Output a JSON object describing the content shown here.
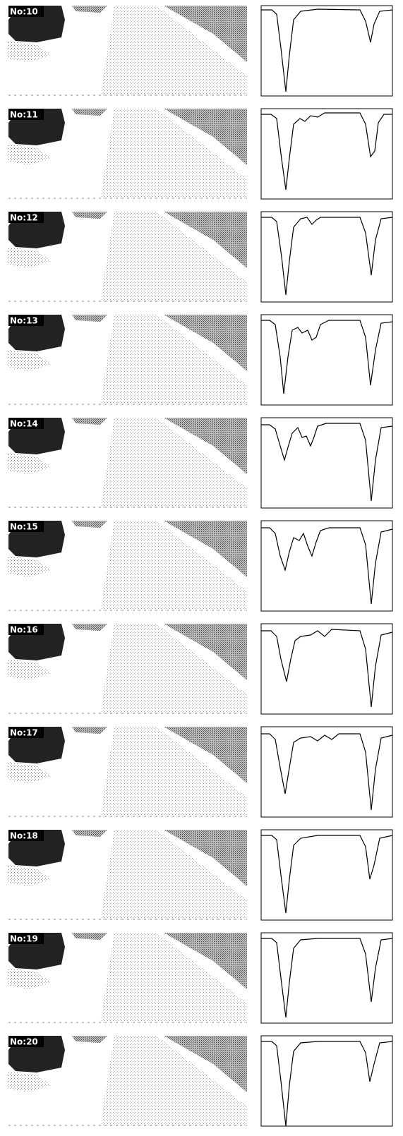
{
  "frames": [
    {
      "label": "No:10"
    },
    {
      "label": "No:11"
    },
    {
      "label": "No:12"
    },
    {
      "label": "No:13"
    },
    {
      "label": "No:14"
    },
    {
      "label": "No:15"
    },
    {
      "label": "No:16"
    },
    {
      "label": "No:17"
    },
    {
      "label": "No:18"
    },
    {
      "label": "No:19"
    },
    {
      "label": "No:20"
    }
  ]
}
